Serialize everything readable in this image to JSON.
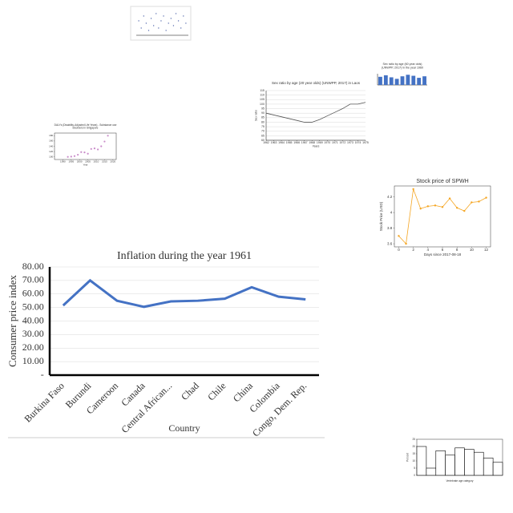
{
  "chart_data": [
    {
      "type": "scatter",
      "color": "#5b6fb0",
      "x": [
        0.5,
        1,
        1.5,
        2,
        2.5,
        3,
        3.5,
        4,
        4.5,
        5,
        5.5,
        6,
        6.5,
        7,
        7.5,
        8,
        8.5,
        9,
        9.5,
        10
      ],
      "values": [
        6,
        3,
        8,
        5,
        2,
        7,
        4,
        9,
        3,
        6,
        8,
        2,
        5,
        7,
        4,
        9,
        6,
        3,
        8,
        5
      ],
      "xlim": [
        0,
        10.5
      ],
      "ylim": [
        0,
        10
      ]
    },
    {
      "type": "line",
      "title": "Sex ratio by age (20 year olds) (UNWPP, 2017) in Laos",
      "x_label": "Years",
      "y_label": "Sex ratio",
      "color": "#555555",
      "x": [
        1962,
        1963,
        1964,
        1965,
        1966,
        1967,
        1968,
        1969,
        1970,
        1971,
        1972,
        1973,
        1974,
        1975
      ],
      "values": [
        90,
        88,
        86,
        84,
        82,
        80,
        80,
        83,
        87,
        91,
        95,
        100,
        100,
        102
      ],
      "xlim": [
        1962,
        1975
      ],
      "xticks": [
        1962,
        1963,
        1964,
        1965,
        1966,
        1967,
        1968,
        1969,
        1970,
        1971,
        1972,
        1973,
        1974,
        1975
      ],
      "ylim": [
        60,
        115
      ],
      "yticks": [
        60,
        65,
        70,
        75,
        80,
        85,
        90,
        95,
        100,
        105,
        110,
        115
      ],
      "grid": true
    },
    {
      "type": "bar",
      "title": [
        "Sex ratio by age (60 year olds)",
        "(UNWPP, 2017) in the year 1960"
      ],
      "color": "#4472c4",
      "categories": [
        null,
        null,
        null,
        null,
        null,
        null,
        null,
        null,
        null
      ],
      "values": [
        80,
        95,
        75,
        60,
        85,
        100,
        90,
        70,
        85
      ],
      "ylim": [
        0,
        110
      ]
    },
    {
      "type": "scatter",
      "title": [
        "DALYs (Disability-Adjusted Life Years) - Substance use",
        "disorders in Singapore"
      ],
      "x_label": "Year",
      "color": "#c98bc9",
      "x": [
        1993,
        1995,
        1997,
        1999,
        2001,
        2003,
        2005,
        2007,
        2009,
        2011,
        2013,
        2015,
        2017
      ],
      "values": [
        100,
        101,
        103,
        108,
        118,
        117,
        112,
        130,
        132,
        128,
        140,
        158,
        180
      ],
      "xlim": [
        1985,
        2022
      ],
      "xticks": [
        1990,
        1995,
        2000,
        2005,
        2010,
        2015,
        2020
      ],
      "ylim": [
        90,
        190
      ],
      "yticks": [
        100,
        120,
        140,
        160,
        180
      ],
      "frame": true
    },
    {
      "type": "line",
      "title": "Stock price of SPWH",
      "x_label": "Days since 2017-08-18",
      "y_label": "Stock Price (USD)",
      "color": "#f5a623",
      "markers": true,
      "x": [
        0,
        1,
        2,
        3,
        4,
        5,
        6,
        7,
        8,
        9,
        10,
        11,
        12
      ],
      "values": [
        3.7,
        3.6,
        4.3,
        4.05,
        4.08,
        4.09,
        4.07,
        4.18,
        4.06,
        4.02,
        4.13,
        4.14,
        4.19
      ],
      "xlim": [
        -0.6,
        12.6
      ],
      "xticks": [
        0,
        2,
        4,
        6,
        8,
        10,
        12
      ],
      "ylim": [
        3.56,
        4.34
      ],
      "yticks": [
        3.6,
        3.8,
        4.0,
        4.2
      ],
      "frame": true
    },
    {
      "type": "line",
      "title": "Inflation during the year 1961",
      "x_label": "Country",
      "y_label": "Consumer price index",
      "color": "#4472c4",
      "categories": [
        "Burkina Faso",
        "Burundi",
        "Cameroon",
        "Canada",
        "Central African...",
        "Chad",
        "Chile",
        "China",
        "Colombia",
        "Congo, Dem. Rep."
      ],
      "values": [
        51.5,
        70,
        55,
        50.5,
        54.5,
        55,
        56.5,
        65,
        58,
        56
      ],
      "ylim": [
        0,
        80
      ],
      "yticks": [
        {
          "value": 0,
          "label": "-"
        },
        {
          "value": 10,
          "label": "10.00"
        },
        {
          "value": 20,
          "label": "20.00"
        },
        {
          "value": 30,
          "label": "30.00"
        },
        {
          "value": 40,
          "label": "40.00"
        },
        {
          "value": 50,
          "label": "50.00"
        },
        {
          "value": 60,
          "label": "60.00"
        },
        {
          "value": 70,
          "label": "70.00"
        },
        {
          "value": 80,
          "label": "80.00"
        }
      ],
      "grid": true
    },
    {
      "type": "bar",
      "x_label": "Vertebrate age category",
      "y_label": "Percent",
      "color": "#ffffff",
      "edgecolor": "#000000",
      "categories": [
        null,
        null,
        null,
        null,
        null,
        null,
        null,
        null,
        null
      ],
      "values": [
        20,
        5,
        17,
        14,
        19,
        18,
        16,
        12,
        9
      ],
      "ylim": [
        0,
        25
      ],
      "yticks": [
        0,
        5,
        10,
        15,
        20,
        25
      ],
      "frame": true
    }
  ]
}
